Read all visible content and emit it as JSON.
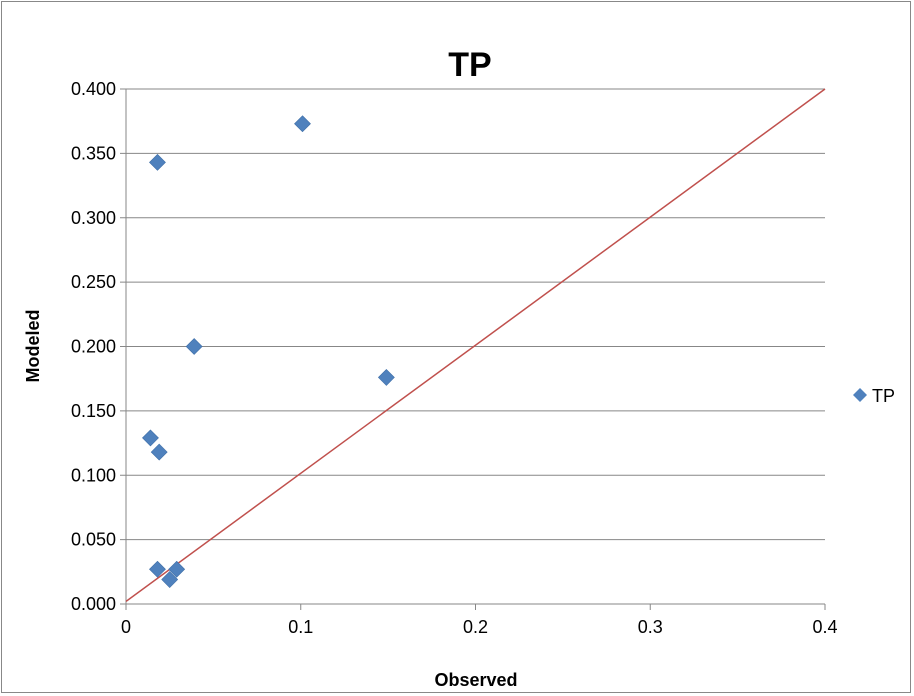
{
  "chart_data": {
    "type": "scatter",
    "title": "TP",
    "xlabel": "Observed",
    "ylabel": "Modeled",
    "xlim": [
      0,
      0.4
    ],
    "ylim": [
      0,
      0.4
    ],
    "x_ticks": [
      "0",
      "0.1",
      "0.2",
      "0.3",
      "0.4"
    ],
    "y_ticks": [
      "0.000",
      "0.050",
      "0.100",
      "0.150",
      "0.200",
      "0.250",
      "0.300",
      "0.350",
      "0.400"
    ],
    "grid": "horizontal",
    "legend": "right",
    "series": [
      {
        "name": "TP",
        "color": "#4f81bd",
        "marker": "diamond",
        "points": [
          {
            "x": 0.101,
            "y": 0.373
          },
          {
            "x": 0.018,
            "y": 0.343
          },
          {
            "x": 0.039,
            "y": 0.2
          },
          {
            "x": 0.149,
            "y": 0.176
          },
          {
            "x": 0.014,
            "y": 0.129
          },
          {
            "x": 0.019,
            "y": 0.118
          },
          {
            "x": 0.018,
            "y": 0.027
          },
          {
            "x": 0.029,
            "y": 0.027
          },
          {
            "x": 0.025,
            "y": 0.019
          }
        ]
      }
    ],
    "reference_line": {
      "color": "#c0504d",
      "points": [
        [
          0,
          0.002
        ],
        [
          0.4,
          0.4
        ]
      ]
    }
  }
}
